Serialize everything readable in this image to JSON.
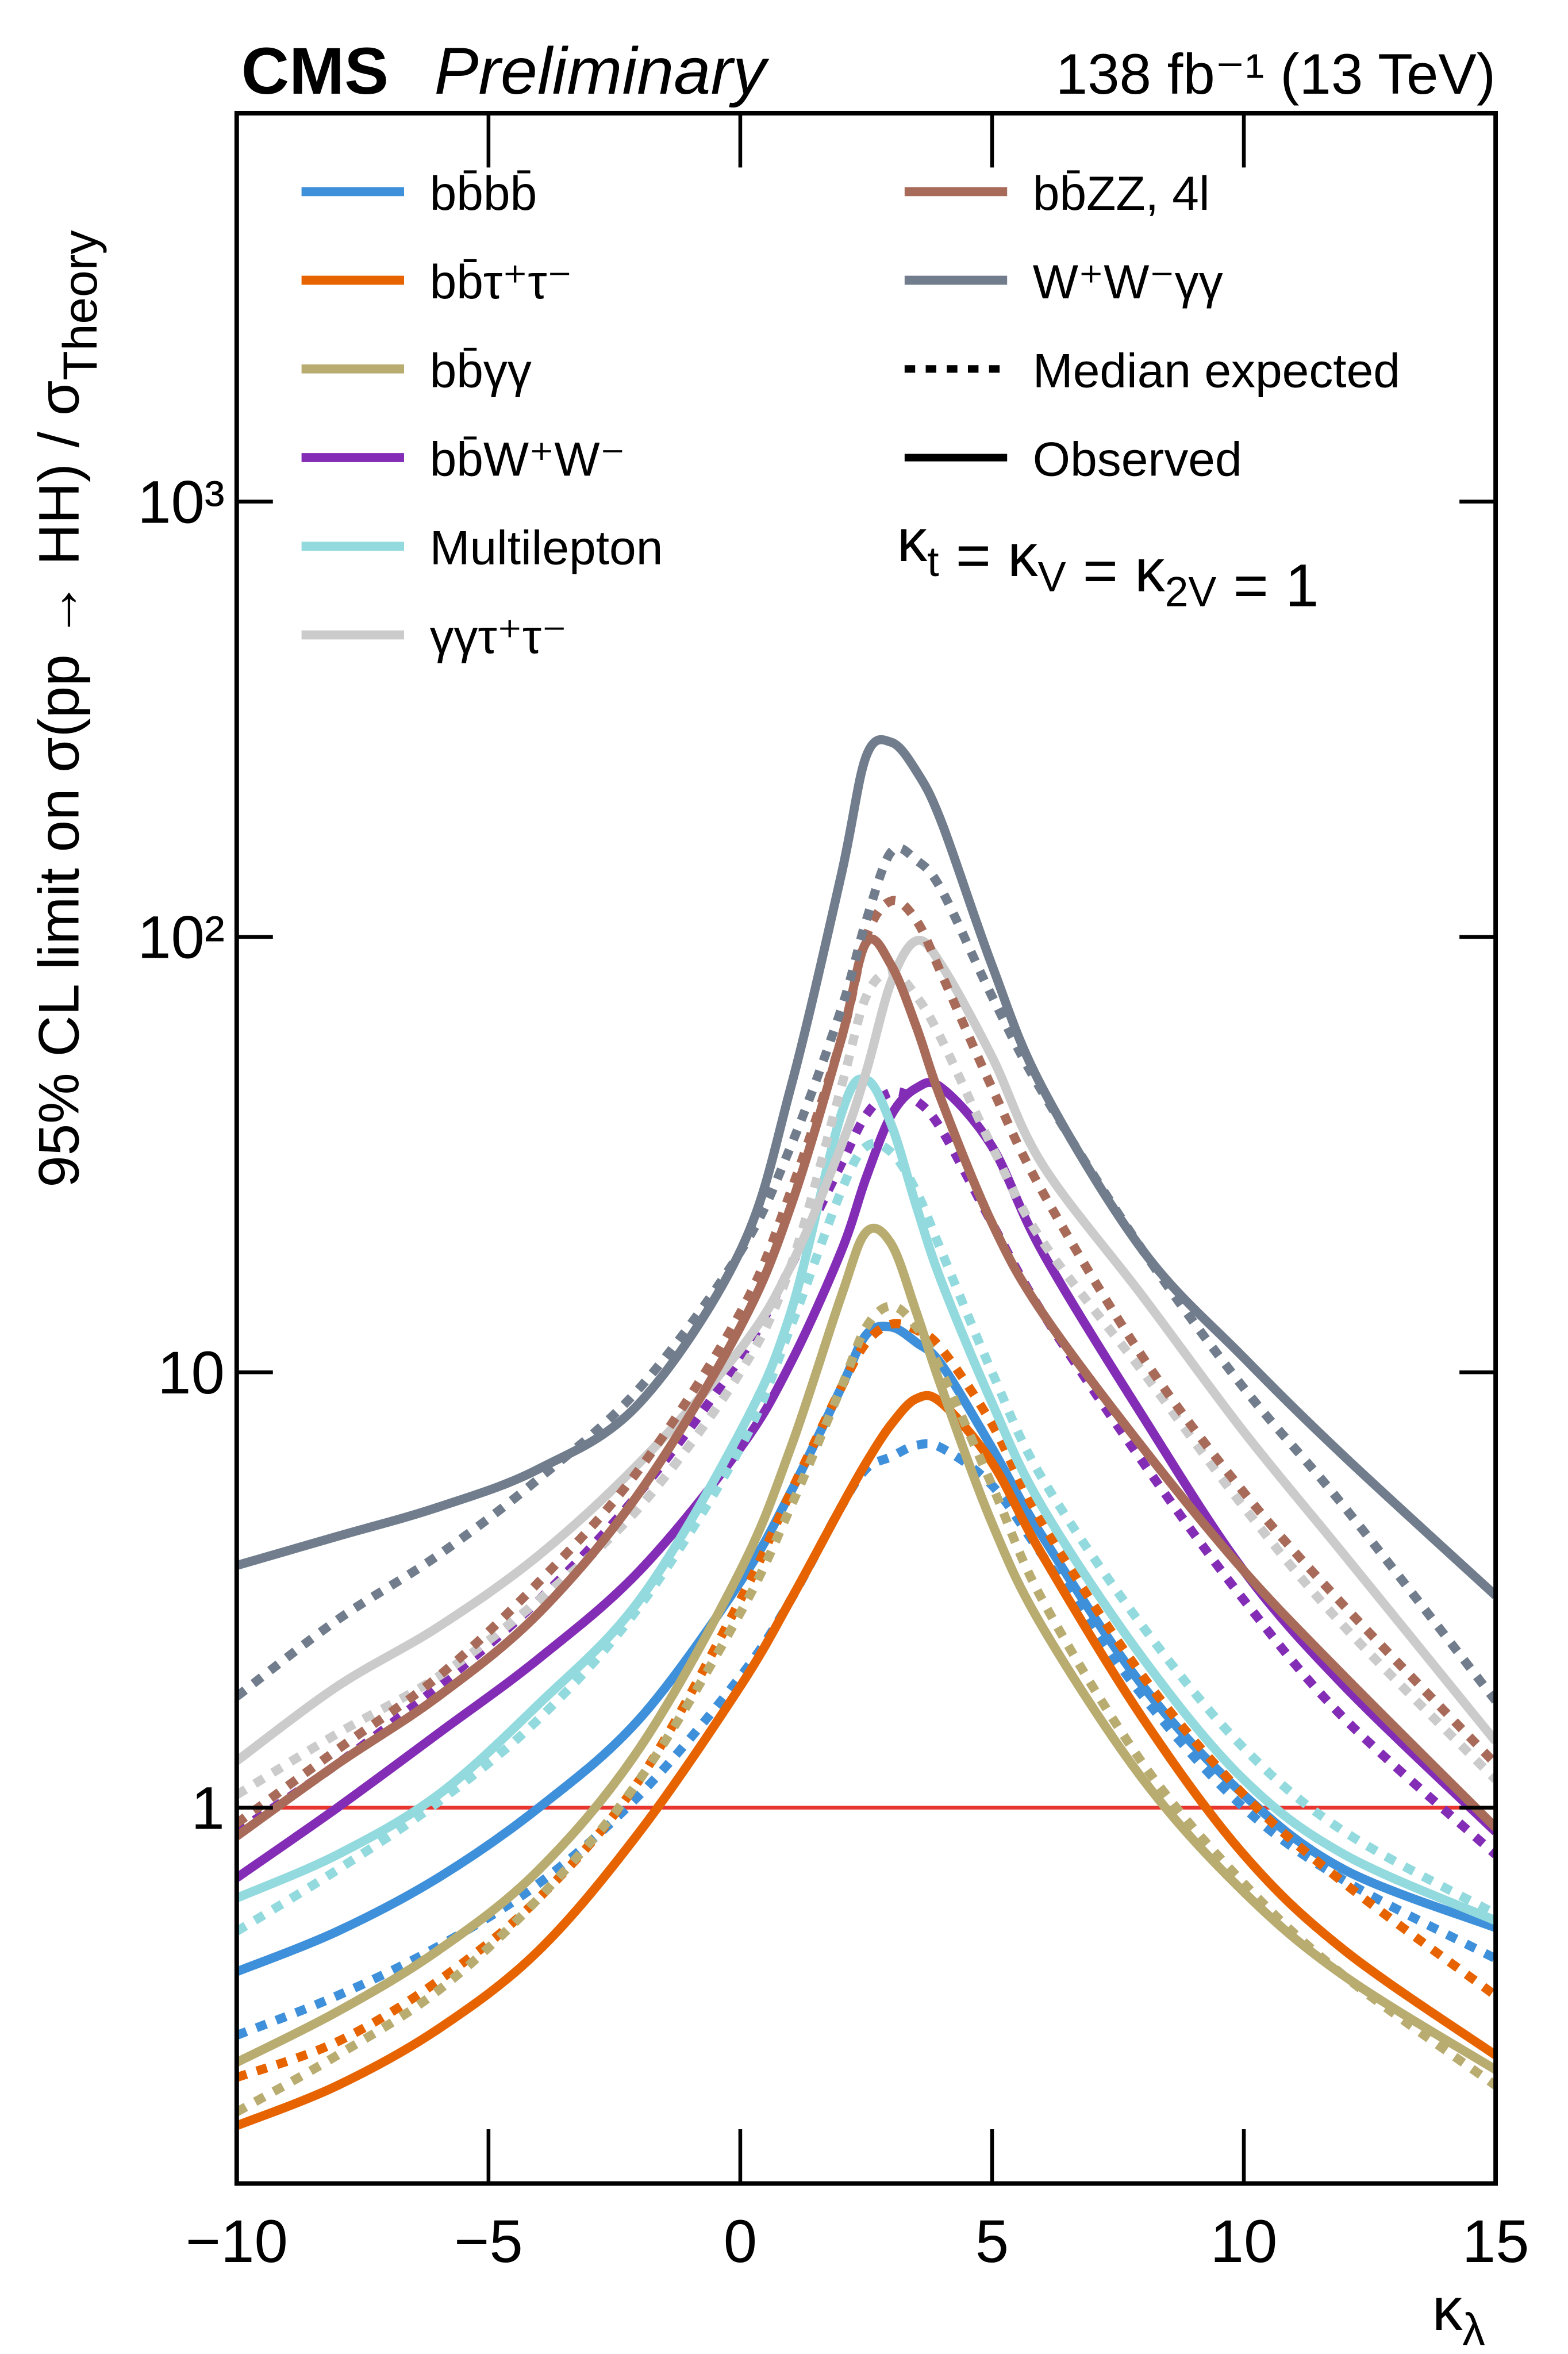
{
  "chart_data": {
    "type": "line",
    "experiment": "CMS",
    "status": "Preliminary",
    "lumi": "138 fb⁻¹ (13 TeV)",
    "ylabel": "95% CL limit on σ(pp → HH) / σ",
    "ylabel_sub": "Theory",
    "xlabel": "κ",
    "xlabel_sub": "λ",
    "constraint": [
      {
        "text": "κ",
        "sub": "t"
      },
      {
        "text": " = κ",
        "sub": "V"
      },
      {
        "text": " = κ",
        "sub": "2V"
      },
      {
        "text": " = 1"
      }
    ],
    "yscale": "log",
    "xlim": [
      -10,
      15
    ],
    "ylim": [
      0.137,
      7800
    ],
    "xticks": [
      {
        "value": -10,
        "label": "−10"
      },
      {
        "value": -5,
        "label": "−5"
      },
      0,
      5,
      10,
      15
    ],
    "yticks": [
      1,
      10,
      {
        "value": 100,
        "label": "10²"
      },
      {
        "value": 1000,
        "label": "10³"
      }
    ],
    "reference_line": {
      "value": 1,
      "color": "#e8352f"
    },
    "x": [
      -10,
      -8,
      -6,
      -4,
      -2,
      0,
      1,
      2,
      2.5,
      3,
      3.5,
      4,
      5,
      6,
      8,
      10,
      12,
      15
    ],
    "series": [
      {
        "name": "bb̄bb̄",
        "color": "#3f90da",
        "observed": [
          0.42,
          0.52,
          0.69,
          1.0,
          1.6,
          3.3,
          5.3,
          9.2,
          12.2,
          12.7,
          11.7,
          10.4,
          6.7,
          4.2,
          1.9,
          1.07,
          0.72,
          0.53
        ],
        "expected": [
          0.3,
          0.37,
          0.48,
          0.67,
          1.07,
          2.0,
          3.0,
          4.9,
          6.0,
          6.4,
          6.8,
          6.7,
          5.5,
          3.8,
          1.8,
          1.0,
          0.68,
          0.45
        ]
      },
      {
        "name": "bb̄τ⁺τ⁻",
        "color": "#e76300",
        "observed": [
          0.186,
          0.23,
          0.31,
          0.47,
          0.88,
          1.9,
          3.0,
          4.9,
          6.2,
          7.6,
          8.7,
          8.5,
          6.2,
          3.8,
          1.6,
          0.78,
          0.47,
          0.27
        ],
        "expected": [
          0.24,
          0.29,
          0.4,
          0.62,
          1.16,
          3.0,
          5.3,
          9.2,
          11.7,
          12.9,
          12.5,
          11.3,
          7.6,
          4.5,
          2.0,
          1.07,
          0.67,
          0.37
        ]
      },
      {
        "name": "bb̄γγ",
        "color": "#b9ac70",
        "observed": [
          0.26,
          0.34,
          0.47,
          0.72,
          1.37,
          3.5,
          6.7,
          14.9,
          21,
          19.7,
          13.7,
          9.2,
          4.5,
          2.6,
          1.16,
          0.64,
          0.41,
          0.25
        ],
        "expected": [
          0.2,
          0.27,
          0.38,
          0.62,
          1.16,
          2.8,
          4.9,
          9.2,
          12.7,
          14.2,
          12.7,
          10,
          5.5,
          3.0,
          1.26,
          0.67,
          0.41,
          0.23
        ]
      },
      {
        "name": "bb̄W⁺W⁻",
        "color": "#832db6",
        "observed": [
          0.69,
          1.0,
          1.48,
          2.2,
          3.5,
          6.7,
          10.5,
          18.9,
          28,
          39,
          45,
          45,
          33,
          18.9,
          7.9,
          3.5,
          1.9,
          0.88
        ],
        "expected": [
          0.88,
          1.26,
          1.9,
          3.0,
          5.3,
          10.8,
          17.5,
          30,
          39,
          44,
          42,
          36,
          22,
          13.7,
          6.2,
          3.0,
          1.6,
          0.78
        ]
      },
      {
        "name": "Multilepton",
        "color": "#92dadd",
        "observed": [
          0.62,
          0.78,
          1.07,
          1.73,
          3.0,
          7.3,
          13.7,
          39,
          47,
          37,
          24,
          16.1,
          8.5,
          4.9,
          2.2,
          1.16,
          0.78,
          0.55
        ],
        "expected": [
          0.52,
          0.72,
          1.03,
          1.6,
          2.9,
          6.7,
          12.7,
          26,
          33,
          32,
          26,
          18.9,
          10,
          5.7,
          2.6,
          1.37,
          0.88,
          0.57
        ]
      },
      {
        "name": "γγτ⁺τ⁻",
        "color": "#cbcbcb",
        "observed": [
          1.28,
          1.9,
          2.6,
          3.8,
          6.2,
          11.3,
          17.5,
          33,
          49,
          79,
          98,
          86,
          53,
          30,
          14.9,
          7.3,
          3.8,
          1.42
        ],
        "expected": [
          1.07,
          1.48,
          2.0,
          3.0,
          4.9,
          10,
          17.5,
          45,
          73,
          83,
          73,
          58,
          33,
          20,
          10,
          4.9,
          2.6,
          1.16
        ]
      },
      {
        "name": "bb̄ZZ, 4l",
        "color": "#a96b59",
        "observed": [
          0.86,
          1.26,
          1.8,
          2.8,
          5.3,
          12.7,
          24,
          58,
          97,
          86,
          62,
          42,
          22,
          13.7,
          6.7,
          3.5,
          2.0,
          0.9
        ],
        "expected": [
          0.92,
          1.36,
          2.0,
          3.3,
          6.0,
          13.7,
          26,
          58,
          100,
          121,
          109,
          82,
          45,
          26,
          10.8,
          5.3,
          2.9,
          1.26
        ]
      },
      {
        "name": "W⁺W⁻γγ",
        "color": "#717d8c",
        "observed": [
          3.6,
          4.2,
          4.9,
          6.0,
          8.5,
          19,
          45,
          138,
          260,
          280,
          240,
          183,
          86,
          45,
          19,
          10.8,
          6.4,
          3.07
        ],
        "expected": [
          1.8,
          2.7,
          3.8,
          5.7,
          9.2,
          18.9,
          33,
          68,
          109,
          157,
          150,
          128,
          73,
          44,
          19,
          9.2,
          4.9,
          1.76
        ]
      }
    ],
    "line_styles": [
      {
        "name": "Median expected",
        "dash": true
      },
      {
        "name": "Observed",
        "dash": false
      }
    ]
  }
}
